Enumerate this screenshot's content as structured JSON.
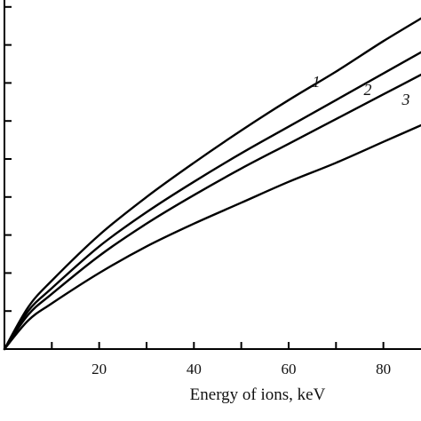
{
  "chart_data": {
    "type": "line",
    "xlabel": "Energy of ions, keV",
    "ylabel": "",
    "x_ticks": [
      "20",
      "40",
      "60",
      "80"
    ],
    "x_tick_values": [
      20,
      40,
      60,
      80
    ],
    "xlim": [
      0,
      90
    ],
    "ylim": [
      0,
      10
    ],
    "y_tick_values": [
      1,
      2,
      3,
      4,
      5,
      6,
      7,
      8,
      9,
      10
    ],
    "grid": false,
    "series": [
      {
        "name": "1",
        "x": [
          0,
          5,
          10,
          20,
          30,
          40,
          50,
          60,
          70,
          80,
          90
        ],
        "values": [
          0,
          1.1,
          1.8,
          3.0,
          4.0,
          4.9,
          5.75,
          6.55,
          7.3,
          8.1,
          8.85
        ]
      },
      {
        "name": "2",
        "x": [
          0,
          5,
          10,
          20,
          30,
          40,
          50,
          60,
          70,
          80,
          90
        ],
        "values": [
          0,
          1.0,
          1.6,
          2.7,
          3.6,
          4.4,
          5.15,
          5.85,
          6.55,
          7.25,
          7.95
        ]
      },
      {
        "name": "3",
        "x": [
          0,
          5,
          10,
          20,
          30,
          40,
          50,
          60,
          70,
          80,
          90
        ],
        "values": [
          0,
          0.9,
          1.45,
          2.45,
          3.3,
          4.05,
          4.75,
          5.4,
          6.05,
          6.7,
          7.35
        ]
      },
      {
        "name": "",
        "x": [
          0,
          5,
          10,
          20,
          30,
          40,
          50,
          60,
          70,
          80,
          90
        ],
        "values": [
          0,
          0.75,
          1.2,
          2.0,
          2.7,
          3.3,
          3.85,
          4.4,
          4.9,
          5.45,
          6.0
        ]
      }
    ]
  }
}
